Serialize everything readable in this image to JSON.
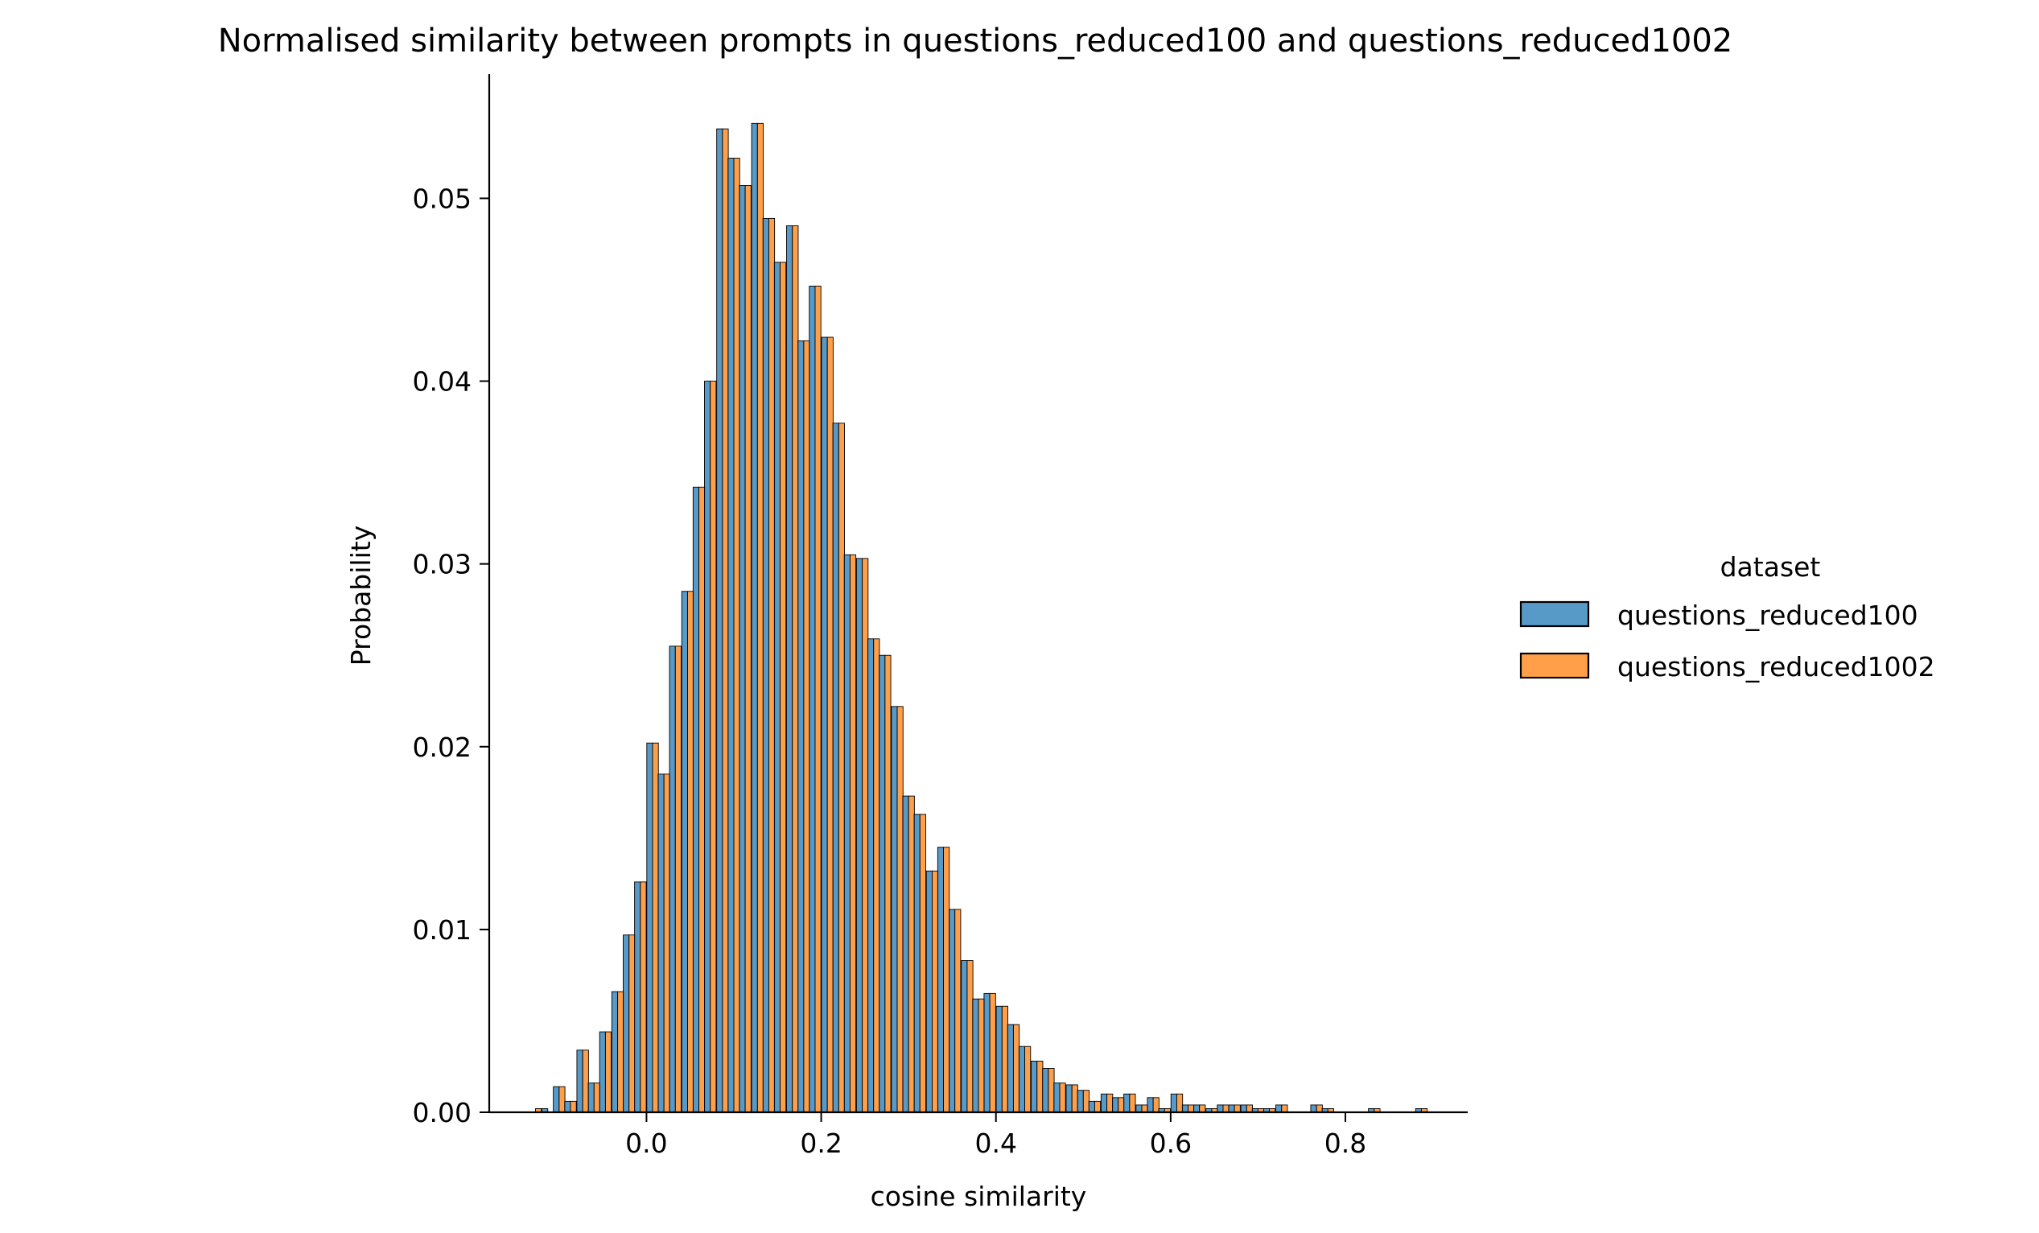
{
  "chart_data": {
    "type": "bar",
    "title": "Normalised similarity between prompts in questions_reduced100 and questions_reduced1002",
    "xlabel": "cosine similarity",
    "ylabel": "Probability",
    "xlim": [
      -0.18,
      0.94
    ],
    "ylim": [
      0,
      0.0568
    ],
    "xticks": [
      0.0,
      0.2,
      0.4,
      0.6,
      0.8
    ],
    "xtick_labels": [
      "0.0",
      "0.2",
      "0.4",
      "0.6",
      "0.8"
    ],
    "yticks": [
      0.0,
      0.01,
      0.02,
      0.03,
      0.04,
      0.05
    ],
    "ytick_labels": [
      "0.00",
      "0.01",
      "0.02",
      "0.03",
      "0.04",
      "0.05"
    ],
    "bin_width": 0.0133,
    "x": [
      -0.127,
      -0.113,
      -0.1,
      -0.087,
      -0.073,
      -0.06,
      -0.047,
      -0.033,
      -0.02,
      -0.007,
      0.007,
      0.02,
      0.033,
      0.047,
      0.06,
      0.073,
      0.087,
      0.1,
      0.113,
      0.127,
      0.14,
      0.153,
      0.167,
      0.18,
      0.193,
      0.207,
      0.22,
      0.233,
      0.247,
      0.26,
      0.273,
      0.287,
      0.3,
      0.313,
      0.327,
      0.34,
      0.353,
      0.367,
      0.38,
      0.393,
      0.407,
      0.42,
      0.433,
      0.447,
      0.46,
      0.473,
      0.487,
      0.5,
      0.513,
      0.527,
      0.54,
      0.553,
      0.567,
      0.58,
      0.593,
      0.607,
      0.62,
      0.633,
      0.647,
      0.66,
      0.673,
      0.687,
      0.7,
      0.713,
      0.727,
      0.74,
      0.753,
      0.767,
      0.78,
      0.793,
      0.807,
      0.82,
      0.833,
      0.847,
      0.86,
      0.873,
      0.887
    ],
    "series": [
      {
        "name": "questions_reduced100",
        "color": "#1f77b4",
        "values": [
          0.0,
          0.0002,
          0.0014,
          0.0006,
          0.0034,
          0.0016,
          0.0044,
          0.0066,
          0.0097,
          0.0126,
          0.0202,
          0.0185,
          0.0255,
          0.0285,
          0.0342,
          0.04,
          0.0538,
          0.0522,
          0.0507,
          0.0541,
          0.0489,
          0.0465,
          0.0485,
          0.0422,
          0.0452,
          0.0424,
          0.0377,
          0.0305,
          0.0303,
          0.0259,
          0.025,
          0.0222,
          0.0173,
          0.0163,
          0.0132,
          0.0145,
          0.0111,
          0.0083,
          0.0062,
          0.0065,
          0.0058,
          0.0048,
          0.0036,
          0.0028,
          0.0024,
          0.0016,
          0.0015,
          0.0012,
          0.0006,
          0.001,
          0.0008,
          0.001,
          0.0004,
          0.0008,
          0.0002,
          0.001,
          0.0004,
          0.0004,
          0.0002,
          0.0004,
          0.0004,
          0.0004,
          0.0002,
          0.0002,
          0.0004,
          0.0,
          0.0,
          0.0004,
          0.0002,
          0.0,
          0.0,
          0.0,
          0.0002,
          0.0,
          0.0,
          0.0,
          0.0002
        ]
      },
      {
        "name": "questions_reduced1002",
        "color": "#ff7f0e",
        "values": [
          0.0002,
          0.0,
          0.0014,
          0.0006,
          0.0034,
          0.0016,
          0.0044,
          0.0066,
          0.0097,
          0.0126,
          0.0202,
          0.0185,
          0.0255,
          0.0285,
          0.0342,
          0.04,
          0.0538,
          0.0522,
          0.0507,
          0.0541,
          0.0489,
          0.0465,
          0.0485,
          0.0422,
          0.0452,
          0.0424,
          0.0377,
          0.0305,
          0.0303,
          0.0259,
          0.025,
          0.0222,
          0.0173,
          0.0163,
          0.0132,
          0.0145,
          0.0111,
          0.0083,
          0.0062,
          0.0065,
          0.0058,
          0.0048,
          0.0036,
          0.0028,
          0.0024,
          0.0016,
          0.0015,
          0.0012,
          0.0006,
          0.001,
          0.0008,
          0.001,
          0.0004,
          0.0008,
          0.0002,
          0.001,
          0.0004,
          0.0004,
          0.0002,
          0.0004,
          0.0004,
          0.0004,
          0.0002,
          0.0002,
          0.0004,
          0.0,
          0.0,
          0.0004,
          0.0002,
          0.0,
          0.0,
          0.0,
          0.0002,
          0.0,
          0.0,
          0.0,
          0.0002
        ]
      }
    ],
    "legend": {
      "title": "dataset",
      "placement": "right",
      "entries": [
        "questions_reduced100",
        "questions_reduced1002"
      ]
    },
    "grid": false,
    "spines": "left-bottom"
  }
}
